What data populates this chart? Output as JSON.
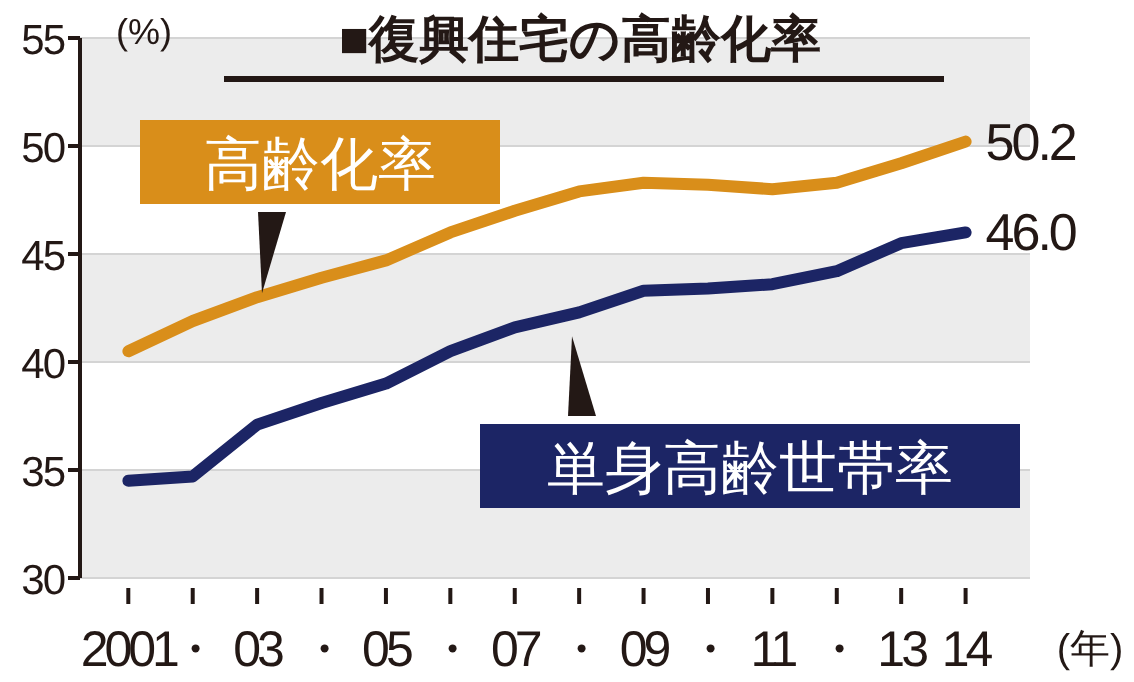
{
  "chart_data": {
    "type": "line",
    "title": "■復興住宅の高齢化率",
    "ylabel": "(%)",
    "xlabel": "(年)",
    "x": [
      2001,
      2002,
      2003,
      2004,
      2005,
      2006,
      2007,
      2008,
      2009,
      2010,
      2011,
      2012,
      2013,
      2014
    ],
    "xlim": [
      2000.25,
      2015
    ],
    "ylim": [
      30,
      55
    ],
    "xticks": [
      {
        "value": 2001,
        "label": "2001"
      },
      {
        "value": 2002,
        "label": "・"
      },
      {
        "value": 2003,
        "label": "03"
      },
      {
        "value": 2004,
        "label": "・"
      },
      {
        "value": 2005,
        "label": "05"
      },
      {
        "value": 2006,
        "label": "・"
      },
      {
        "value": 2007,
        "label": "07"
      },
      {
        "value": 2008,
        "label": "・"
      },
      {
        "value": 2009,
        "label": "09"
      },
      {
        "value": 2010,
        "label": "・"
      },
      {
        "value": 2011,
        "label": "11"
      },
      {
        "value": 2012,
        "label": "・"
      },
      {
        "value": 2013,
        "label": "13"
      },
      {
        "value": 2014,
        "label": "14"
      }
    ],
    "yticks": [
      30,
      35,
      40,
      45,
      50,
      55
    ],
    "grid": "y",
    "legend": false,
    "marker": "none",
    "line_style": "solid",
    "series": [
      {
        "name": "高齢化率",
        "color": "#d98e1a",
        "values": [
          40.5,
          41.9,
          43.0,
          43.9,
          44.7,
          46.0,
          47.0,
          47.9,
          48.3,
          48.2,
          48.0,
          48.3,
          49.2,
          50.2
        ],
        "value_labels": [
          null,
          null,
          null,
          null,
          null,
          null,
          null,
          null,
          null,
          null,
          null,
          null,
          null,
          "50.2"
        ]
      },
      {
        "name": "単身高齢世帯率",
        "color": "#1c2565",
        "values": [
          34.5,
          34.7,
          37.1,
          38.1,
          39.0,
          40.5,
          41.6,
          42.3,
          43.3,
          43.4,
          43.6,
          44.2,
          45.5,
          46.0
        ],
        "value_labels": [
          null,
          null,
          null,
          null,
          null,
          null,
          null,
          null,
          null,
          null,
          null,
          null,
          null,
          "46.0"
        ]
      }
    ]
  }
}
